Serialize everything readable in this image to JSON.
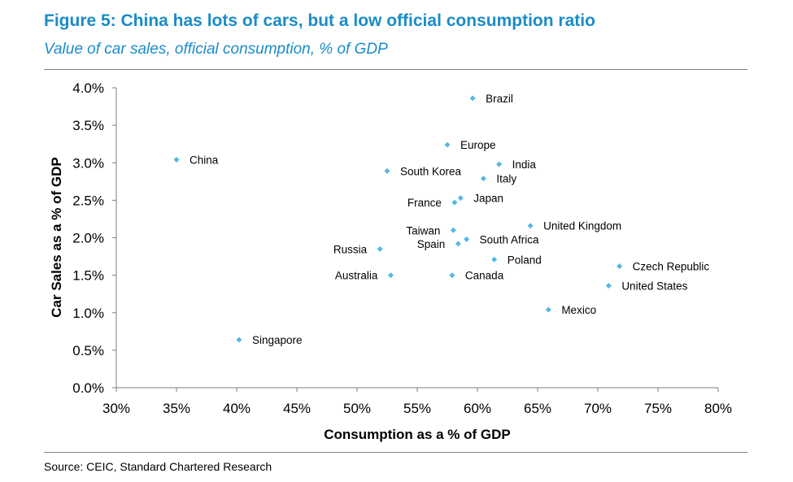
{
  "header": {
    "title": "Figure 5: China has lots of cars, but a low official consumption ratio",
    "subtitle": "Value of car sales, official consumption, % of GDP"
  },
  "footer": {
    "source": "Source: CEIC, Standard Chartered Research"
  },
  "colors": {
    "accent": "#1a8cc8",
    "marker": "#55b8e6",
    "axis": "#7f7f7f"
  },
  "chart_data": {
    "type": "scatter",
    "xlabel": "Consumption as a % of GDP",
    "ylabel": "Car Sales as a % of GDP",
    "xlim": [
      30,
      80
    ],
    "ylim": [
      0,
      4
    ],
    "x_ticks": [
      30,
      35,
      40,
      45,
      50,
      55,
      60,
      65,
      70,
      75,
      80
    ],
    "y_ticks": [
      0,
      0.5,
      1.0,
      1.5,
      2.0,
      2.5,
      3.0,
      3.5,
      4.0
    ],
    "x_tick_labels": [
      "30%",
      "35%",
      "40%",
      "45%",
      "50%",
      "55%",
      "60%",
      "65%",
      "70%",
      "75%",
      "80%"
    ],
    "y_tick_labels": [
      "0.0%",
      "0.5%",
      "1.0%",
      "1.5%",
      "2.0%",
      "2.5%",
      "3.0%",
      "3.5%",
      "4.0%"
    ],
    "grid": false,
    "points": [
      {
        "label": "China",
        "x": 35.0,
        "y": 3.04,
        "label_side": "right"
      },
      {
        "label": "Brazil",
        "x": 59.6,
        "y": 3.86,
        "label_side": "right"
      },
      {
        "label": "Europe",
        "x": 57.5,
        "y": 3.24,
        "label_side": "right"
      },
      {
        "label": "India",
        "x": 61.8,
        "y": 2.98,
        "label_side": "right"
      },
      {
        "label": "South Korea",
        "x": 52.5,
        "y": 2.89,
        "label_side": "right"
      },
      {
        "label": "Italy",
        "x": 60.5,
        "y": 2.79,
        "label_side": "right"
      },
      {
        "label": "Japan",
        "x": 58.6,
        "y": 2.53,
        "label_side": "right"
      },
      {
        "label": "France",
        "x": 58.1,
        "y": 2.47,
        "label_side": "left"
      },
      {
        "label": "United Kingdom",
        "x": 64.4,
        "y": 2.16,
        "label_side": "right"
      },
      {
        "label": "Taiwan",
        "x": 58.0,
        "y": 2.1,
        "label_side": "left"
      },
      {
        "label": "South Africa",
        "x": 59.1,
        "y": 1.98,
        "label_side": "right"
      },
      {
        "label": "Spain",
        "x": 58.4,
        "y": 1.92,
        "label_side": "left"
      },
      {
        "label": "Russia",
        "x": 51.9,
        "y": 1.85,
        "label_side": "left"
      },
      {
        "label": "Poland",
        "x": 61.4,
        "y": 1.71,
        "label_side": "right"
      },
      {
        "label": "Czech Republic",
        "x": 71.8,
        "y": 1.62,
        "label_side": "right"
      },
      {
        "label": "Australia",
        "x": 52.8,
        "y": 1.5,
        "label_side": "left"
      },
      {
        "label": "Canada",
        "x": 57.9,
        "y": 1.5,
        "label_side": "right"
      },
      {
        "label": "United States",
        "x": 70.9,
        "y": 1.36,
        "label_side": "right"
      },
      {
        "label": "Mexico",
        "x": 65.9,
        "y": 1.04,
        "label_side": "right"
      },
      {
        "label": "Singapore",
        "x": 40.2,
        "y": 0.64,
        "label_side": "right"
      }
    ]
  }
}
